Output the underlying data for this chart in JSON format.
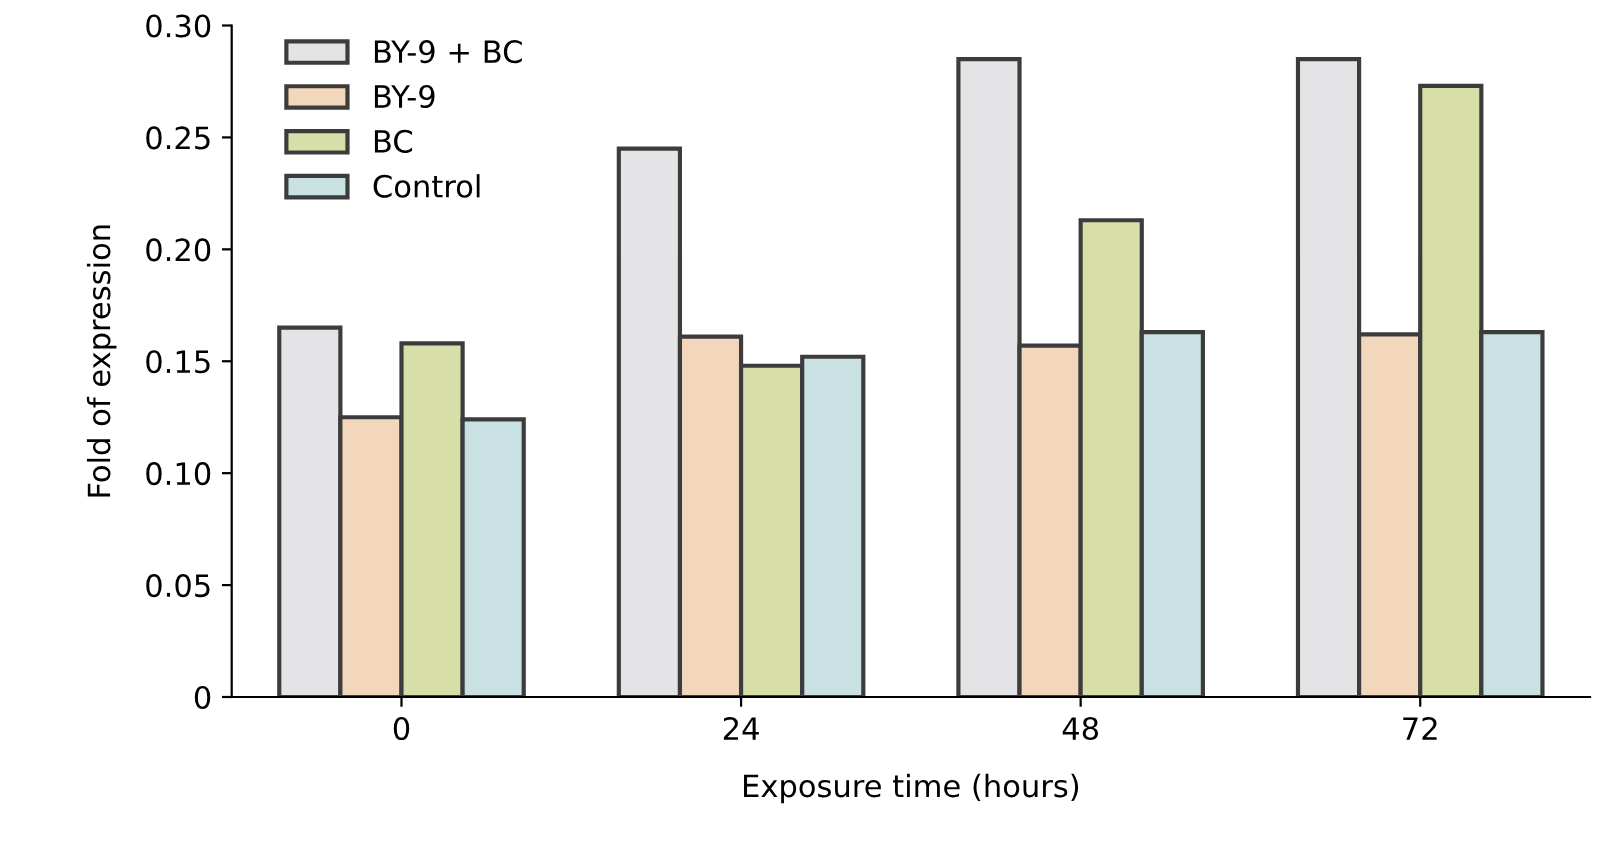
{
  "chart_data": {
    "type": "bar",
    "xlabel": "Exposure time (hours)",
    "ylabel": "Fold of expression",
    "categories": [
      "0",
      "24",
      "48",
      "72"
    ],
    "series": [
      {
        "name": "BY-9 + BC",
        "color": "#e4e4e6",
        "values": [
          0.165,
          0.245,
          0.285,
          0.285
        ]
      },
      {
        "name": "BY-9",
        "color": "#f3d7bd",
        "values": [
          0.125,
          0.161,
          0.157,
          0.162
        ]
      },
      {
        "name": "BC",
        "color": "#d8dea8",
        "values": [
          0.158,
          0.148,
          0.213,
          0.273
        ]
      },
      {
        "name": "Control",
        "color": "#c9e1e3",
        "values": [
          0.124,
          0.152,
          0.163,
          0.163
        ]
      }
    ],
    "ylim": [
      0,
      0.3
    ],
    "yticks": [
      0,
      {
        "value": 0.05,
        "label": "0.05"
      },
      {
        "value": 0.1,
        "label": "0.10"
      },
      {
        "value": 0.15,
        "label": "0.15"
      },
      {
        "value": 0.2,
        "label": "0.20"
      },
      {
        "value": 0.25,
        "label": "0.25"
      },
      {
        "value": 0.3,
        "label": "0.30"
      }
    ],
    "grid": false,
    "legend": "top left"
  }
}
